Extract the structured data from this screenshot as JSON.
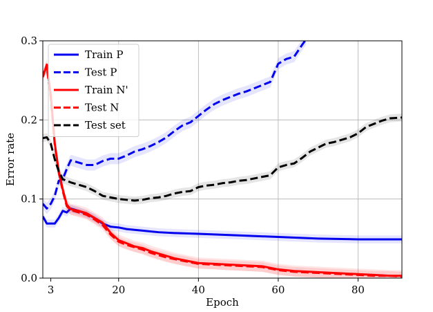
{
  "chart_data": {
    "type": "line",
    "title": "",
    "xlabel": "Epoch",
    "ylabel": "Error rate",
    "xlim": [
      1,
      91
    ],
    "ylim": [
      0.0,
      0.3
    ],
    "grid": true,
    "legend_position": "top-left",
    "x_ticks": [
      3,
      20,
      40,
      60,
      80
    ],
    "x_tick_labels": [
      "3",
      "20",
      "40",
      "60",
      "80"
    ],
    "y_ticks": [
      0.0,
      0.1,
      0.2,
      0.3
    ],
    "y_tick_labels": [
      "0.0",
      "0.1",
      "0.2",
      "0.3"
    ],
    "series": [
      {
        "name": "Train P",
        "color": "#0000ee",
        "dash": "solid",
        "band": 0.005,
        "x": [
          1,
          2,
          3,
          4,
          5,
          6,
          7,
          8,
          10,
          12,
          14,
          16,
          18,
          20,
          22,
          24,
          26,
          30,
          34,
          40,
          50,
          60,
          70,
          80,
          91
        ],
        "y": [
          0.078,
          0.069,
          0.069,
          0.069,
          0.076,
          0.085,
          0.083,
          0.088,
          0.085,
          0.081,
          0.076,
          0.069,
          0.065,
          0.064,
          0.062,
          0.061,
          0.06,
          0.058,
          0.057,
          0.056,
          0.054,
          0.052,
          0.05,
          0.049,
          0.049
        ]
      },
      {
        "name": "Test P",
        "color": "#0000ee",
        "dash": "dashed",
        "band": 0.007,
        "x": [
          1,
          2,
          3,
          4,
          5,
          6,
          7,
          8,
          10,
          12,
          14,
          16,
          18,
          20,
          22,
          24,
          26,
          28,
          30,
          32,
          34,
          36,
          38,
          40,
          42,
          44,
          46,
          48,
          50,
          52,
          54,
          56,
          58,
          60,
          62,
          64,
          66,
          67
        ],
        "y": [
          0.094,
          0.088,
          0.094,
          0.104,
          0.123,
          0.125,
          0.138,
          0.149,
          0.146,
          0.143,
          0.143,
          0.148,
          0.151,
          0.151,
          0.155,
          0.16,
          0.163,
          0.167,
          0.172,
          0.178,
          0.186,
          0.193,
          0.197,
          0.205,
          0.213,
          0.22,
          0.225,
          0.229,
          0.233,
          0.236,
          0.24,
          0.244,
          0.248,
          0.271,
          0.277,
          0.28,
          0.295,
          0.302
        ]
      },
      {
        "name": "Train N'",
        "color": "#ff0000",
        "dash": "solid",
        "band": 0.007,
        "x": [
          1,
          2,
          3,
          4,
          5,
          6,
          7,
          8,
          10,
          12,
          14,
          16,
          18,
          20,
          22,
          24,
          26,
          28,
          30,
          32,
          34,
          36,
          38,
          40,
          44,
          48,
          52,
          56,
          60,
          64,
          68,
          72,
          76,
          80,
          84,
          88,
          91
        ],
        "y": [
          0.254,
          0.27,
          0.231,
          0.17,
          0.135,
          0.112,
          0.093,
          0.087,
          0.085,
          0.082,
          0.076,
          0.07,
          0.057,
          0.048,
          0.044,
          0.04,
          0.038,
          0.034,
          0.031,
          0.028,
          0.025,
          0.023,
          0.021,
          0.019,
          0.018,
          0.017,
          0.016,
          0.015,
          0.011,
          0.009,
          0.008,
          0.007,
          0.006,
          0.005,
          0.004,
          0.003,
          0.003
        ]
      },
      {
        "name": "Test N",
        "color": "#ff0000",
        "dash": "dashed",
        "band": 0.006,
        "x": [
          1,
          2,
          3,
          4,
          5,
          6,
          7,
          8,
          10,
          12,
          14,
          16,
          18,
          20,
          22,
          24,
          26,
          28,
          30,
          32,
          34,
          36,
          38,
          40,
          44,
          48,
          52,
          56,
          60,
          64,
          68,
          72,
          76,
          80,
          84,
          88,
          91
        ],
        "y": [
          0.258,
          0.266,
          0.228,
          0.168,
          0.133,
          0.11,
          0.091,
          0.086,
          0.083,
          0.08,
          0.074,
          0.067,
          0.055,
          0.046,
          0.042,
          0.039,
          0.036,
          0.032,
          0.029,
          0.026,
          0.024,
          0.022,
          0.02,
          0.018,
          0.017,
          0.016,
          0.015,
          0.014,
          0.01,
          0.008,
          0.007,
          0.006,
          0.005,
          0.004,
          0.003,
          0.003,
          0.002
        ]
      },
      {
        "name": "Test set",
        "color": "#000000",
        "dash": "dashed",
        "band": 0.005,
        "x": [
          1,
          2,
          3,
          4,
          5,
          6,
          7,
          8,
          10,
          12,
          14,
          16,
          18,
          20,
          22,
          24,
          26,
          28,
          30,
          32,
          34,
          36,
          38,
          40,
          42,
          44,
          46,
          48,
          50,
          52,
          54,
          56,
          58,
          60,
          62,
          64,
          66,
          68,
          70,
          72,
          74,
          76,
          78,
          80,
          82,
          84,
          86,
          88,
          91
        ],
        "y": [
          0.177,
          0.178,
          0.17,
          0.15,
          0.135,
          0.125,
          0.123,
          0.121,
          0.118,
          0.115,
          0.11,
          0.104,
          0.102,
          0.1,
          0.099,
          0.098,
          0.099,
          0.101,
          0.102,
          0.104,
          0.107,
          0.109,
          0.11,
          0.115,
          0.117,
          0.118,
          0.12,
          0.121,
          0.123,
          0.124,
          0.126,
          0.128,
          0.13,
          0.14,
          0.143,
          0.145,
          0.152,
          0.16,
          0.165,
          0.17,
          0.172,
          0.175,
          0.178,
          0.183,
          0.191,
          0.195,
          0.199,
          0.202,
          0.203
        ]
      }
    ]
  }
}
